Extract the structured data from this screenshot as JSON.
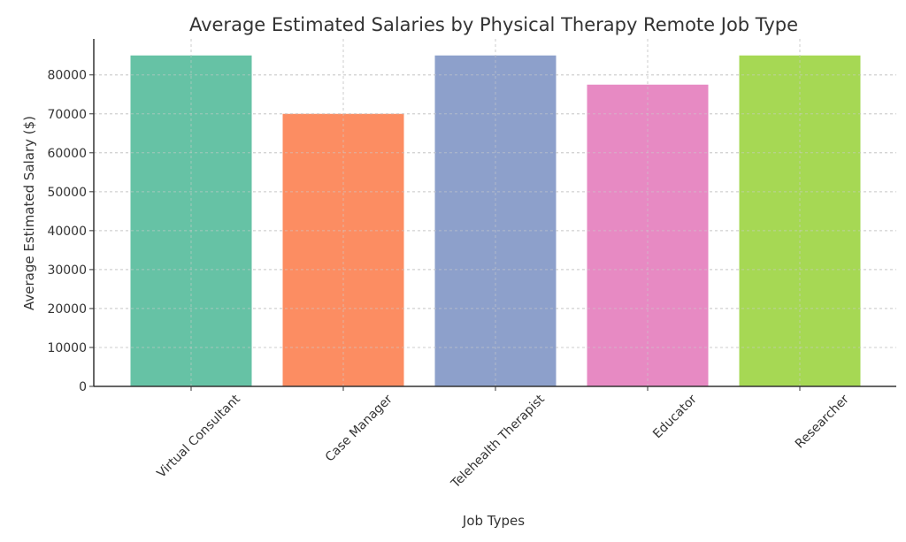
{
  "chart_data": {
    "type": "bar",
    "title": "Average Estimated Salaries by Physical Therapy Remote Job Type",
    "xlabel": "Job Types",
    "ylabel": "Average Estimated Salary ($)",
    "categories": [
      "Virtual Consultant",
      "Case Manager",
      "Telehealth Therapist",
      "Educator",
      "Researcher"
    ],
    "values": [
      85000,
      70000,
      85000,
      77500,
      85000
    ],
    "colors": [
      "#66c2a5",
      "#fc8d62",
      "#8da0cb",
      "#e78ac3",
      "#a6d854"
    ],
    "yticks": [
      0,
      10000,
      20000,
      30000,
      40000,
      50000,
      60000,
      70000,
      80000
    ],
    "ylim": [
      0,
      89250
    ],
    "grid": true,
    "legend": "none"
  }
}
